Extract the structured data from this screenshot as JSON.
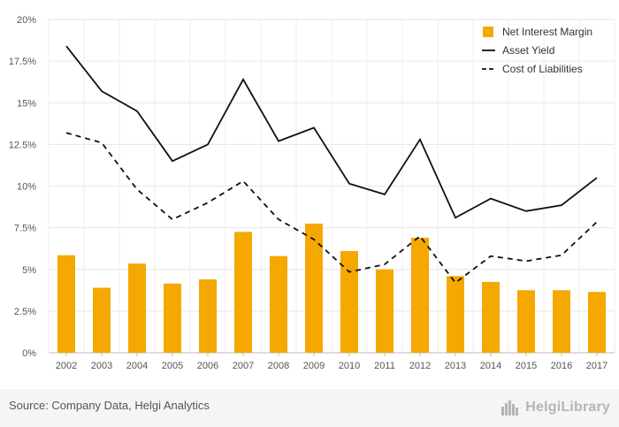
{
  "chart_data": {
    "type": "bar+line",
    "categories": [
      "2002",
      "2003",
      "2004",
      "2005",
      "2006",
      "2007",
      "2008",
      "2009",
      "2010",
      "2011",
      "2012",
      "2013",
      "2014",
      "2015",
      "2016",
      "2017"
    ],
    "y_ticks": [
      "0%",
      "2.5%",
      "5%",
      "7.5%",
      "10%",
      "12.5%",
      "15%",
      "17.5%",
      "20%"
    ],
    "ylim": [
      0,
      20
    ],
    "grid": true,
    "legend_position": "top-right",
    "series": [
      {
        "name": "Net Interest Margin",
        "type": "bar",
        "color": "#f5a800",
        "values": [
          5.85,
          3.9,
          5.35,
          4.15,
          4.4,
          7.25,
          5.8,
          7.75,
          6.1,
          5.0,
          6.9,
          4.6,
          4.25,
          3.75,
          3.75,
          3.65
        ]
      },
      {
        "name": "Asset Yield",
        "type": "line",
        "style": "solid",
        "color": "#111111",
        "values": [
          18.4,
          15.7,
          14.5,
          11.5,
          12.5,
          16.4,
          12.7,
          13.5,
          10.15,
          9.5,
          12.8,
          8.1,
          9.25,
          8.5,
          8.85,
          10.5
        ]
      },
      {
        "name": "Cost of Liabilities",
        "type": "line",
        "style": "dashed",
        "color": "#111111",
        "values": [
          13.2,
          12.6,
          9.8,
          8.0,
          9.0,
          10.3,
          8.0,
          6.8,
          4.85,
          5.3,
          7.0,
          4.2,
          5.8,
          5.5,
          5.85,
          7.85
        ]
      }
    ]
  },
  "footer": {
    "source": "Source: Company Data, Helgi Analytics",
    "brand": "HelgiLibrary",
    "brand_icon": "city-skyline-icon"
  }
}
